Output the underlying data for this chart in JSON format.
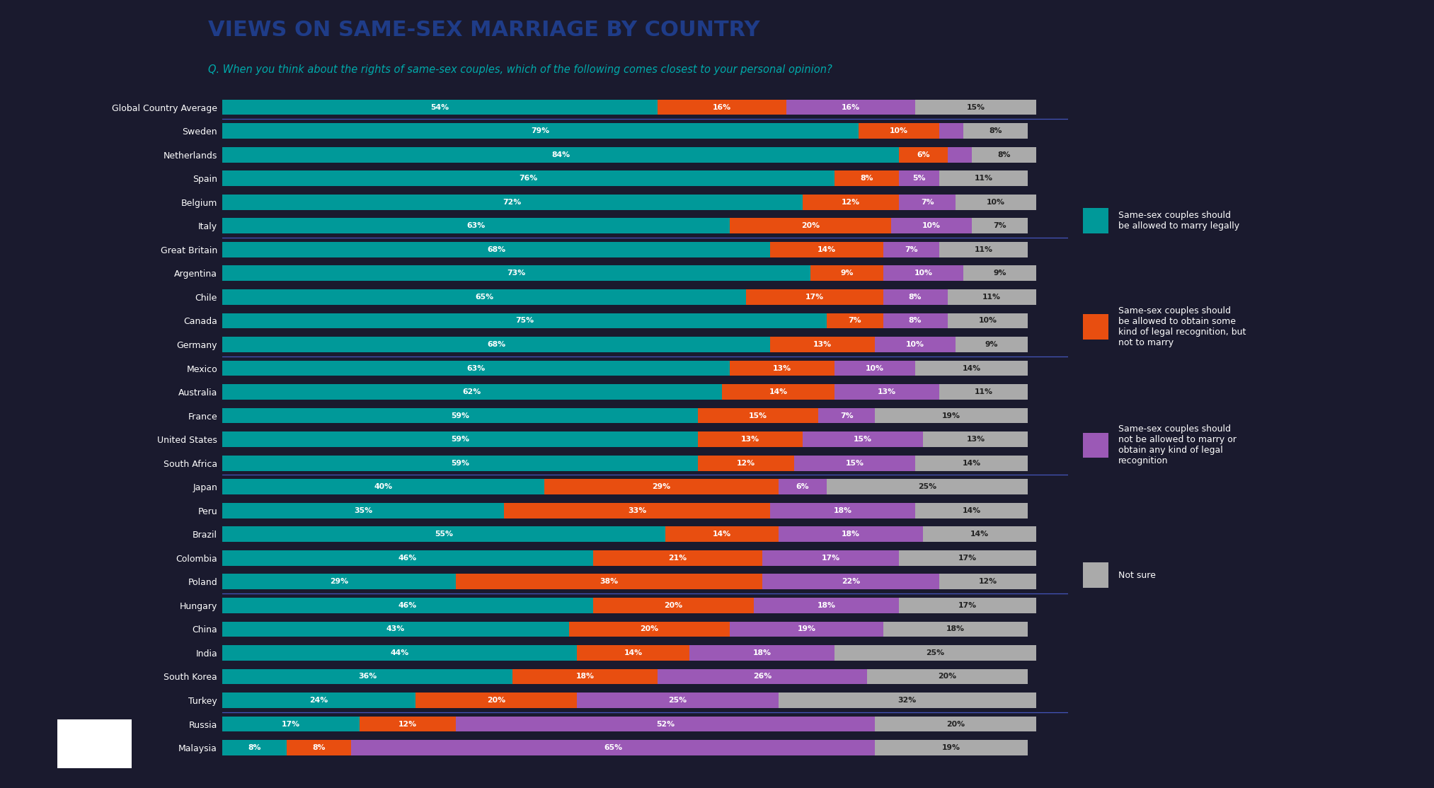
{
  "title": "VIEWS ON SAME-SEX MARRIAGE BY COUNTRY",
  "subtitle": "Q. When you think about the rights of same-sex couples, which of the following comes closest to your personal opinion?",
  "title_color": "#1f3c88",
  "subtitle_color": "#00aaaa",
  "background_color": "#1a1a2e",
  "categories": [
    "Global Country Average",
    "Sweden",
    "Netherlands",
    "Spain",
    "Belgium",
    "Italy",
    "Great Britain",
    "Argentina",
    "Chile",
    "Canada",
    "Germany",
    "Mexico",
    "Australia",
    "France",
    "United States",
    "South Africa",
    "Japan",
    "Peru",
    "Brazil",
    "Colombia",
    "Poland",
    "Hungary",
    "China",
    "India",
    "South Korea",
    "Turkey",
    "Russia",
    "Malaysia"
  ],
  "marry_legally": [
    54,
    79,
    84,
    76,
    72,
    63,
    68,
    73,
    65,
    75,
    68,
    63,
    62,
    59,
    59,
    59,
    40,
    35,
    55,
    46,
    29,
    46,
    43,
    44,
    36,
    24,
    17,
    8
  ],
  "legal_recognition": [
    16,
    10,
    6,
    8,
    12,
    20,
    14,
    9,
    17,
    7,
    13,
    13,
    14,
    15,
    13,
    12,
    29,
    33,
    14,
    21,
    38,
    20,
    20,
    14,
    18,
    20,
    12,
    8
  ],
  "no_recognition": [
    16,
    3,
    3,
    5,
    7,
    10,
    7,
    10,
    8,
    8,
    10,
    10,
    13,
    7,
    15,
    15,
    6,
    18,
    18,
    17,
    22,
    18,
    19,
    18,
    26,
    25,
    52,
    65
  ],
  "not_sure": [
    15,
    8,
    8,
    11,
    10,
    7,
    11,
    9,
    11,
    10,
    9,
    14,
    11,
    19,
    13,
    14,
    25,
    14,
    14,
    17,
    12,
    17,
    18,
    25,
    20,
    32,
    20,
    19
  ],
  "color_teal": "#009999",
  "color_orange": "#e84e10",
  "color_purple": "#9b59b6",
  "color_gray": "#aaaaaa",
  "legend_labels": [
    "Same-sex couples should\nbe allowed to marry legally",
    "Same-sex couples should\nbe allowed to obtain some\nkind of legal recognition, but\nnot to marry",
    "Same-sex couples should\nnot be allowed to marry or\nobtain any kind of legal\nrecognition",
    "Not sure"
  ]
}
